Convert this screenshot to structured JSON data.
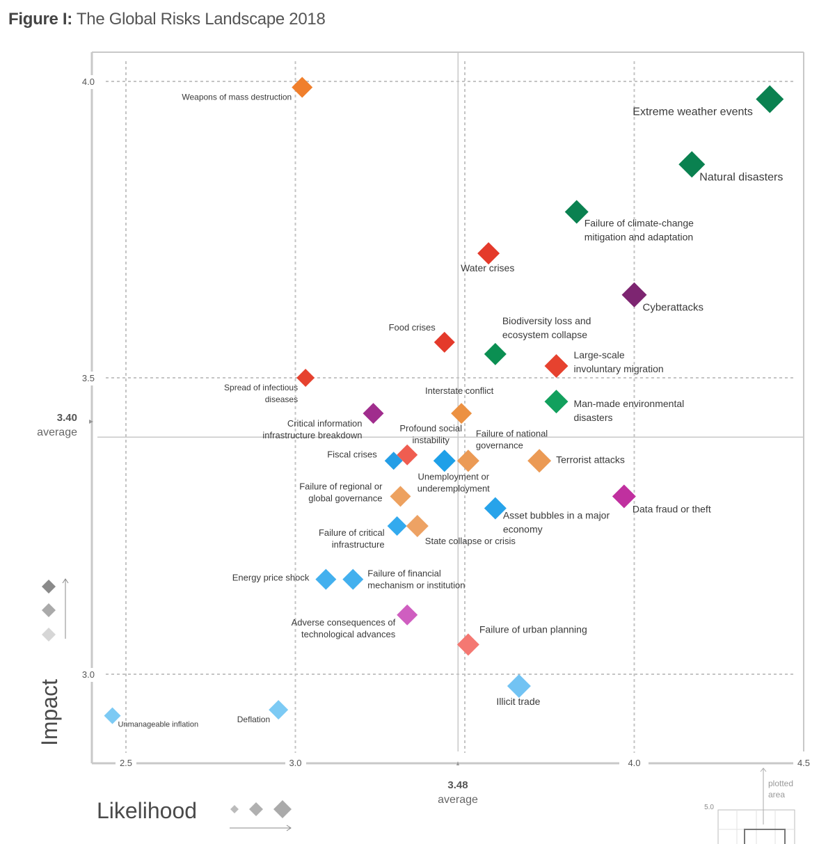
{
  "title": {
    "prefix": "Figure I:",
    "text": "The Global Risks Landscape 2018"
  },
  "chart_data": {
    "type": "scatter",
    "title": "Figure I: The Global Risks Landscape 2018",
    "xlabel": "Likelihood",
    "ylabel": "Impact",
    "xlim": [
      2.5,
      4.5
    ],
    "ylim": [
      2.85,
      4.05
    ],
    "x_ticks": [
      "2.5",
      "3.0",
      "4.0",
      "4.5"
    ],
    "y_ticks": [
      "4.0",
      "3.5",
      "3.0"
    ],
    "x_average": {
      "value": "3.48",
      "label": "average"
    },
    "y_average": {
      "value": "3.40",
      "label": "average"
    },
    "grid": true,
    "inset": {
      "tick": "5.0",
      "label": "plotted\narea"
    },
    "points": [
      {
        "label": "Weapons of mass destruction",
        "x": 3.02,
        "y": 3.99,
        "color": "#f07f2c"
      },
      {
        "label": "Extreme weather events",
        "x": 4.4,
        "y": 3.97,
        "color": "#0a8150"
      },
      {
        "label": "Natural disasters",
        "x": 4.17,
        "y": 3.86,
        "color": "#0a8150"
      },
      {
        "label": "Failure of climate-change\nmitigation and adaptation",
        "x": 3.83,
        "y": 3.78,
        "color": "#0a8150"
      },
      {
        "label": "Water crises",
        "x": 3.57,
        "y": 3.71,
        "color": "#e43a2b"
      },
      {
        "label": "Cyberattacks",
        "x": 4.0,
        "y": 3.64,
        "color": "#7d2571"
      },
      {
        "label": "Food crises",
        "x": 3.44,
        "y": 3.56,
        "color": "#e43a2b"
      },
      {
        "label": "Biodiversity loss and\necosystem collapse",
        "x": 3.59,
        "y": 3.54,
        "color": "#0b8f52"
      },
      {
        "label": "Large-scale\ninvoluntary migration",
        "x": 3.77,
        "y": 3.52,
        "color": "#e6422f"
      },
      {
        "label": "Spread of infectious\ndiseases",
        "x": 3.03,
        "y": 3.5,
        "color": "#e6422f"
      },
      {
        "label": "Man-made environmental\ndisasters",
        "x": 3.77,
        "y": 3.46,
        "color": "#12a05d"
      },
      {
        "label": "Interstate conflict",
        "x": 3.49,
        "y": 3.44,
        "color": "#ec9142"
      },
      {
        "label": "Critical information\ninfrastructure breakdown",
        "x": 3.23,
        "y": 3.44,
        "color": "#a02d8d"
      },
      {
        "label": "Fiscal crises",
        "x": 3.29,
        "y": 3.36,
        "color": "#259ee6"
      },
      {
        "label": "Profound social\ninstability",
        "x": 3.33,
        "y": 3.37,
        "color": "#ef5d50"
      },
      {
        "label": "Unemployment or\nunderemployment",
        "x": 3.44,
        "y": 3.36,
        "color": "#1ea0e8"
      },
      {
        "label": "Failure of national\ngovernance",
        "x": 3.51,
        "y": 3.36,
        "color": "#eb9a55"
      },
      {
        "label": "Terrorist attacks",
        "x": 3.72,
        "y": 3.36,
        "color": "#eb9a55"
      },
      {
        "label": "Data fraud or theft",
        "x": 3.97,
        "y": 3.3,
        "color": "#c0309f"
      },
      {
        "label": "Failure of regional or\nglobal governance",
        "x": 3.31,
        "y": 3.3,
        "color": "#eda15f"
      },
      {
        "label": "Asset bubbles in a major\neconomy",
        "x": 3.59,
        "y": 3.28,
        "color": "#27a3ea"
      },
      {
        "label": "Failure of critical\ninfrastructure",
        "x": 3.3,
        "y": 3.25,
        "color": "#33aaee"
      },
      {
        "label": "State collapse or crisis",
        "x": 3.36,
        "y": 3.25,
        "color": "#eda264"
      },
      {
        "label": "Energy price shock",
        "x": 3.09,
        "y": 3.16,
        "color": "#43b0ee"
      },
      {
        "label": "Failure of financial\nmechanism or institution",
        "x": 3.17,
        "y": 3.16,
        "color": "#43b0ee"
      },
      {
        "label": "Adverse consequences of\ntechnological advances",
        "x": 3.33,
        "y": 3.1,
        "color": "#cf5ec0"
      },
      {
        "label": "Failure of urban planning",
        "x": 3.51,
        "y": 3.05,
        "color": "#f47872"
      },
      {
        "label": "Illicit trade",
        "x": 3.66,
        "y": 2.98,
        "color": "#72c3f3"
      },
      {
        "label": "Deflation",
        "x": 2.95,
        "y": 2.94,
        "color": "#7ccaf4"
      },
      {
        "label": "Unmanageable inflation",
        "x": 2.46,
        "y": 2.93,
        "color": "#7ccaf4"
      }
    ]
  }
}
